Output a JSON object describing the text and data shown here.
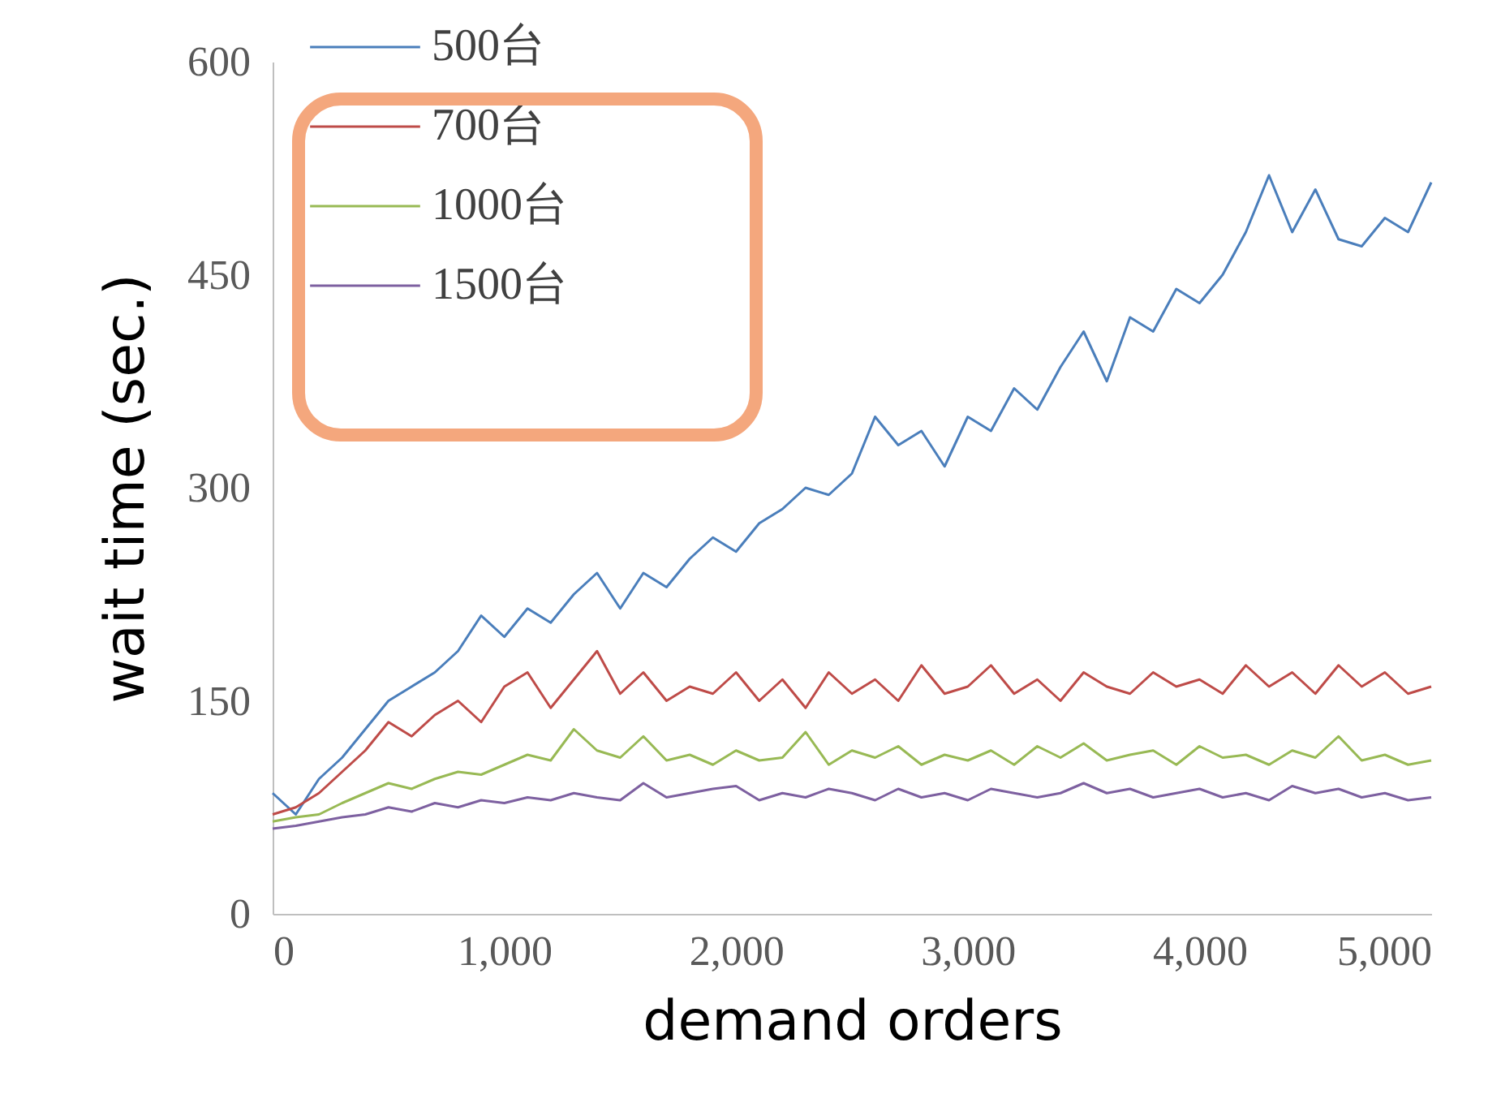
{
  "chart_data": {
    "type": "line",
    "xlabel": "demand orders",
    "ylabel": "wait time (sec.)",
    "x": [
      0,
      100,
      200,
      300,
      400,
      500,
      600,
      700,
      800,
      900,
      1000,
      1100,
      1200,
      1300,
      1400,
      1500,
      1600,
      1700,
      1800,
      1900,
      2000,
      2100,
      2200,
      2300,
      2400,
      2500,
      2600,
      2700,
      2800,
      2900,
      3000,
      3100,
      3200,
      3300,
      3400,
      3500,
      3600,
      3700,
      3800,
      3900,
      4000,
      4100,
      4200,
      4300,
      4400,
      4500,
      4600,
      4700,
      4800,
      4900,
      5000
    ],
    "series": [
      {
        "name": "500台",
        "color": "#4a7ebb",
        "values": [
          85,
          70,
          95,
          110,
          130,
          150,
          160,
          170,
          185,
          210,
          195,
          215,
          205,
          225,
          240,
          215,
          240,
          230,
          250,
          265,
          255,
          275,
          285,
          300,
          295,
          310,
          350,
          330,
          340,
          315,
          350,
          340,
          370,
          355,
          385,
          410,
          375,
          420,
          410,
          440,
          430,
          450,
          480,
          520,
          480,
          510,
          475,
          470,
          490,
          480,
          515
        ]
      },
      {
        "name": "700台",
        "color": "#be4b48",
        "values": [
          70,
          75,
          85,
          100,
          115,
          135,
          125,
          140,
          150,
          135,
          160,
          170,
          145,
          165,
          185,
          155,
          170,
          150,
          160,
          155,
          170,
          150,
          165,
          145,
          170,
          155,
          165,
          150,
          175,
          155,
          160,
          175,
          155,
          165,
          150,
          170,
          160,
          155,
          170,
          160,
          165,
          155,
          175,
          160,
          170,
          155,
          175,
          160,
          170,
          155,
          160
        ]
      },
      {
        "name": "1000台",
        "color": "#98b954",
        "values": [
          65,
          68,
          70,
          78,
          85,
          92,
          88,
          95,
          100,
          98,
          105,
          112,
          108,
          130,
          115,
          110,
          125,
          108,
          112,
          105,
          115,
          108,
          110,
          128,
          105,
          115,
          110,
          118,
          105,
          112,
          108,
          115,
          105,
          118,
          110,
          120,
          108,
          112,
          115,
          105,
          118,
          110,
          112,
          105,
          115,
          110,
          125,
          108,
          112,
          105,
          108
        ]
      },
      {
        "name": "1500台",
        "color": "#7d60a0",
        "values": [
          60,
          62,
          65,
          68,
          70,
          75,
          72,
          78,
          75,
          80,
          78,
          82,
          80,
          85,
          82,
          80,
          92,
          82,
          85,
          88,
          90,
          80,
          85,
          82,
          88,
          85,
          80,
          88,
          82,
          85,
          80,
          88,
          85,
          82,
          85,
          92,
          85,
          88,
          82,
          85,
          88,
          82,
          85,
          80,
          90,
          85,
          88,
          82,
          85,
          80,
          82
        ]
      }
    ],
    "xlim": [
      0,
      5000
    ],
    "xticks": [
      0,
      {
        "value": 1000,
        "label": "1,000"
      },
      {
        "value": 2000,
        "label": "2,000"
      },
      {
        "value": 3000,
        "label": "3,000"
      },
      {
        "value": 4000,
        "label": "4,000"
      },
      {
        "value": 5000,
        "label": "5,000"
      }
    ],
    "ylim": [
      0,
      600
    ],
    "yticks": [
      0,
      150,
      300,
      450,
      600
    ],
    "grid": false,
    "legend": "top left",
    "marker": "none",
    "line_style": "solid"
  }
}
